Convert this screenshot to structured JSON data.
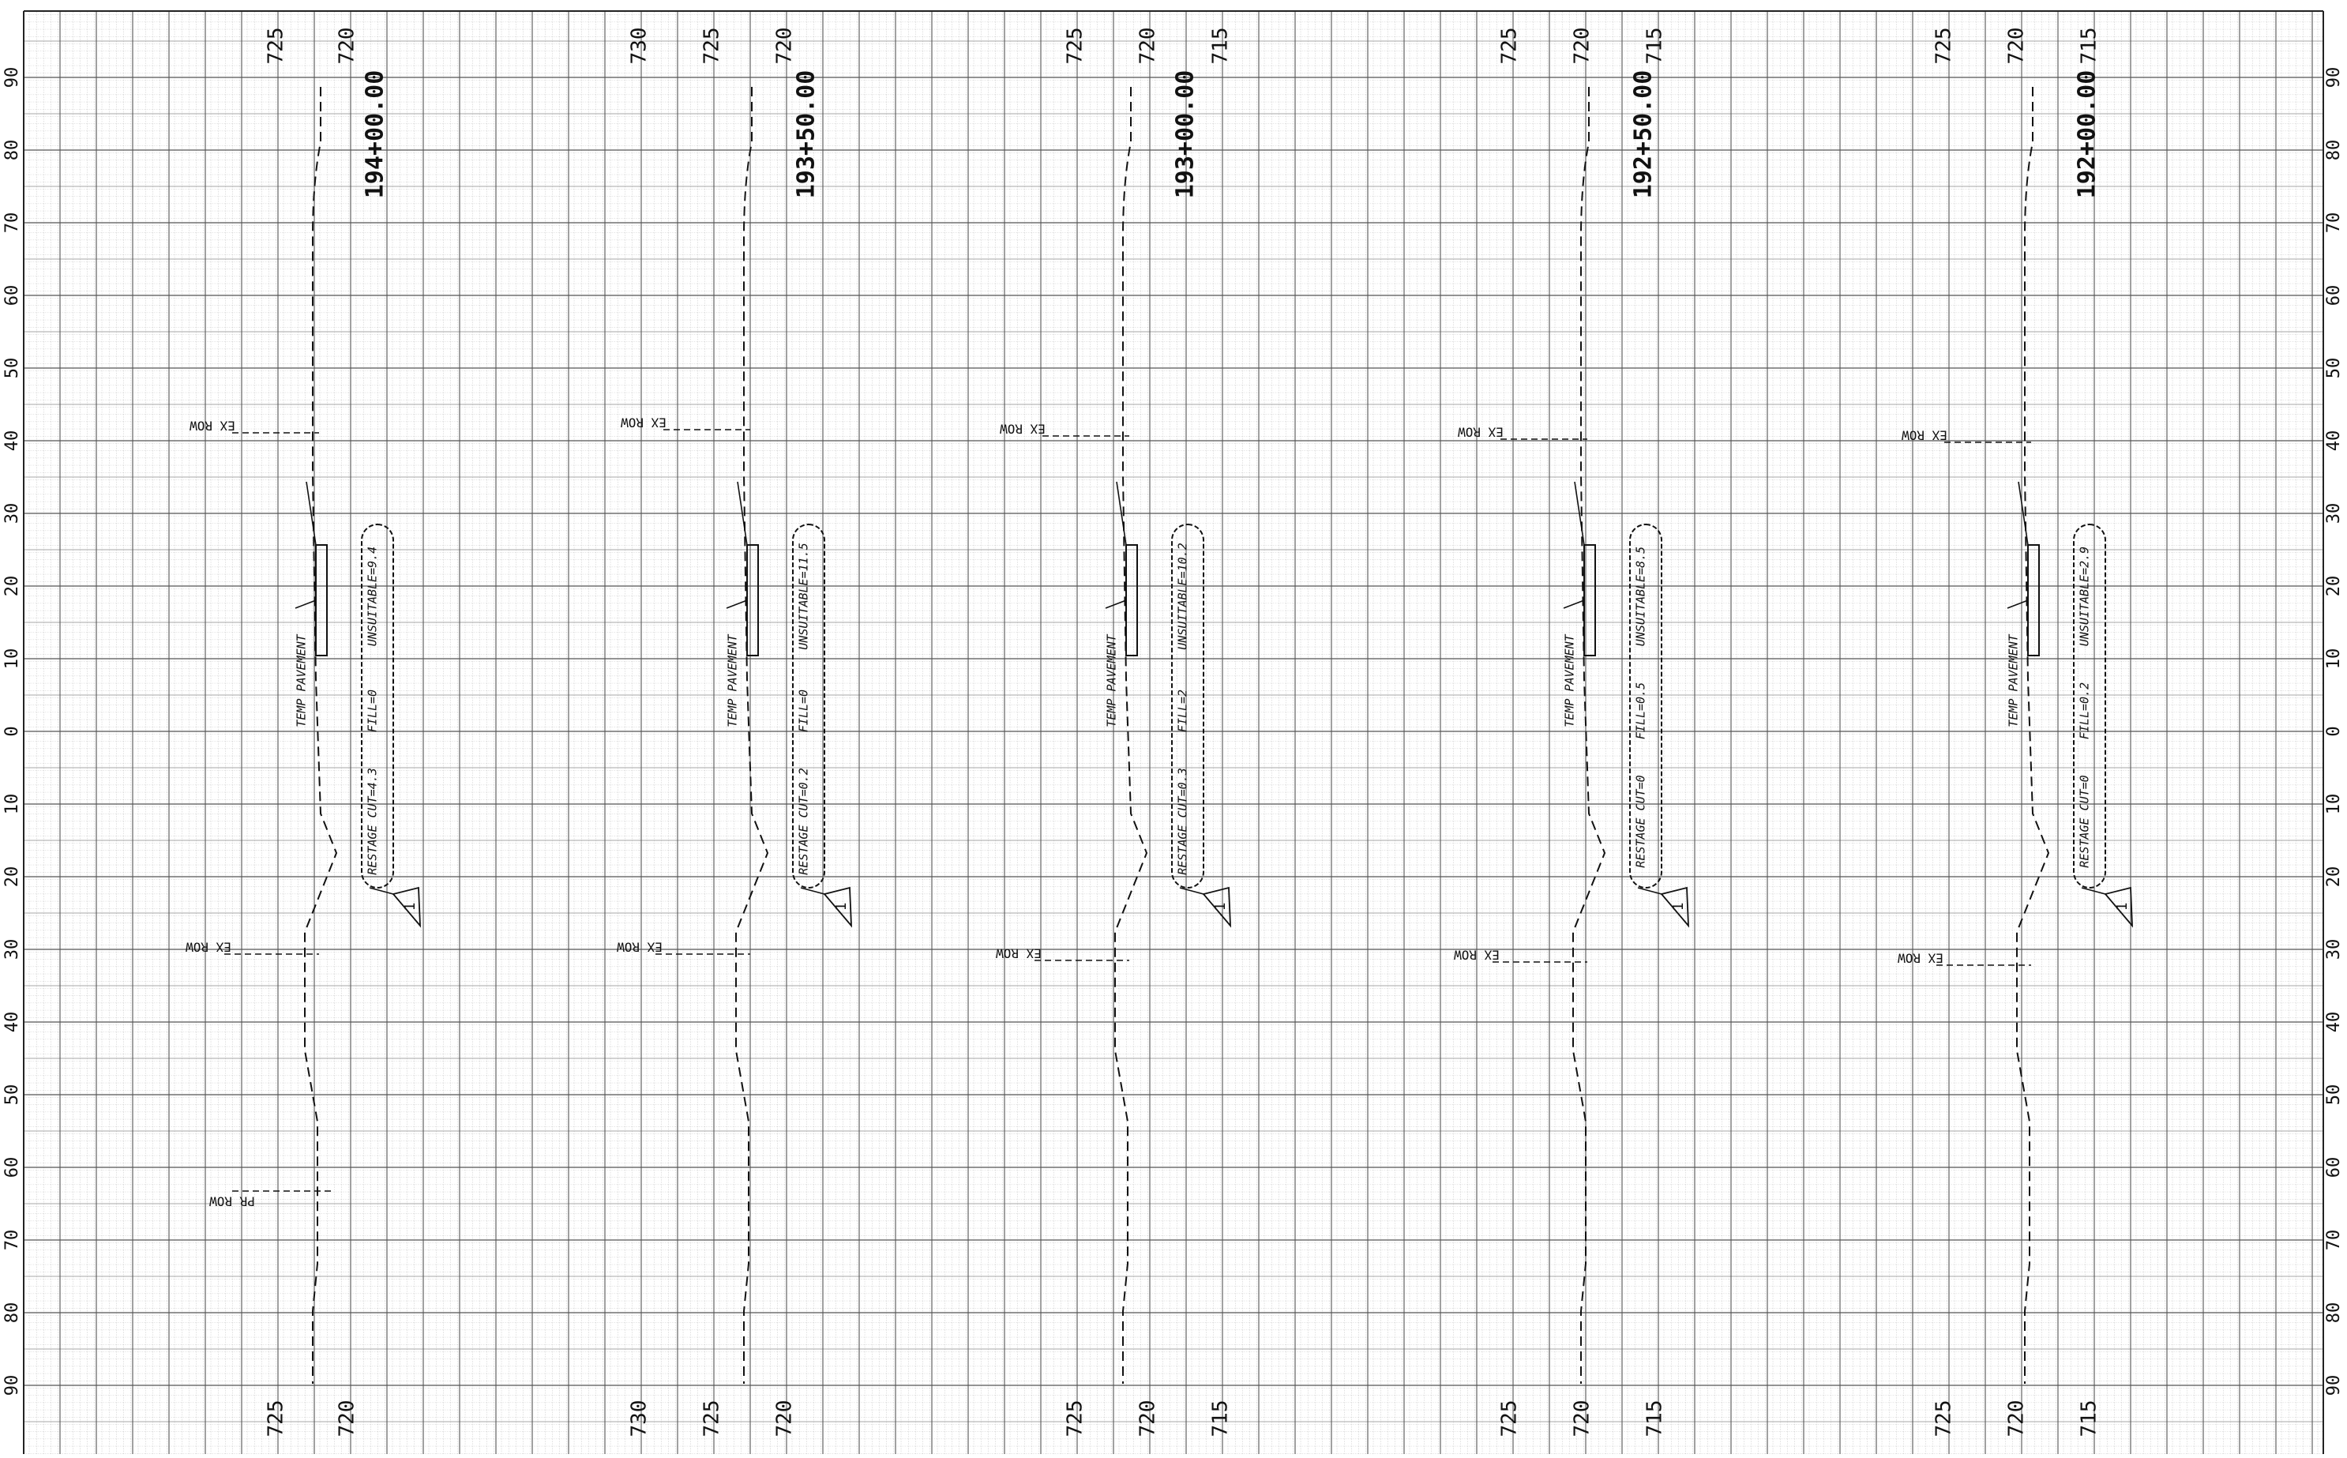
{
  "offset_ticks": [
    "90",
    "80",
    "70",
    "60",
    "50",
    "40",
    "30",
    "20",
    "10",
    "0",
    "10",
    "20",
    "30",
    "40",
    "50",
    "60",
    "70",
    "80",
    "90"
  ],
  "ex_row_label": "EX ROW",
  "pr_row_label": "PR ROW",
  "temp_pavement_label": "TEMP PAVEMENT",
  "sheet_number": "1",
  "sections": [
    {
      "station": "194+00.00",
      "elevations": [
        "725",
        "720"
      ],
      "restage": "RESTAGE CUT=4.3",
      "fill": "FILL=0",
      "unsuitable": "UNSUITABLE=9.4",
      "has_pr_row": true
    },
    {
      "station": "193+50.00",
      "elevations": [
        "730",
        "725",
        "720"
      ],
      "restage": "RESTAGE CUT=0.2",
      "fill": "FILL=0",
      "unsuitable": "UNSUITABLE=11.5",
      "has_pr_row": false
    },
    {
      "station": "193+00.00",
      "elevations": [
        "725",
        "720",
        "715"
      ],
      "restage": "RESTAGE CUT=0.3",
      "fill": "FILL=2",
      "unsuitable": "UNSUITABLE=10.2",
      "has_pr_row": false
    },
    {
      "station": "192+50.00",
      "elevations": [
        "725",
        "720",
        "715"
      ],
      "restage": "RESTAGE CUT=0",
      "fill": "FILL=0.5",
      "unsuitable": "UNSUITABLE=8.5",
      "has_pr_row": false
    },
    {
      "station": "192+00.00",
      "elevations": [
        "725",
        "720",
        "715"
      ],
      "restage": "RESTAGE CUT=0",
      "fill": "FILL=0.2",
      "unsuitable": "UNSUITABLE=2.9",
      "has_pr_row": false
    }
  ]
}
